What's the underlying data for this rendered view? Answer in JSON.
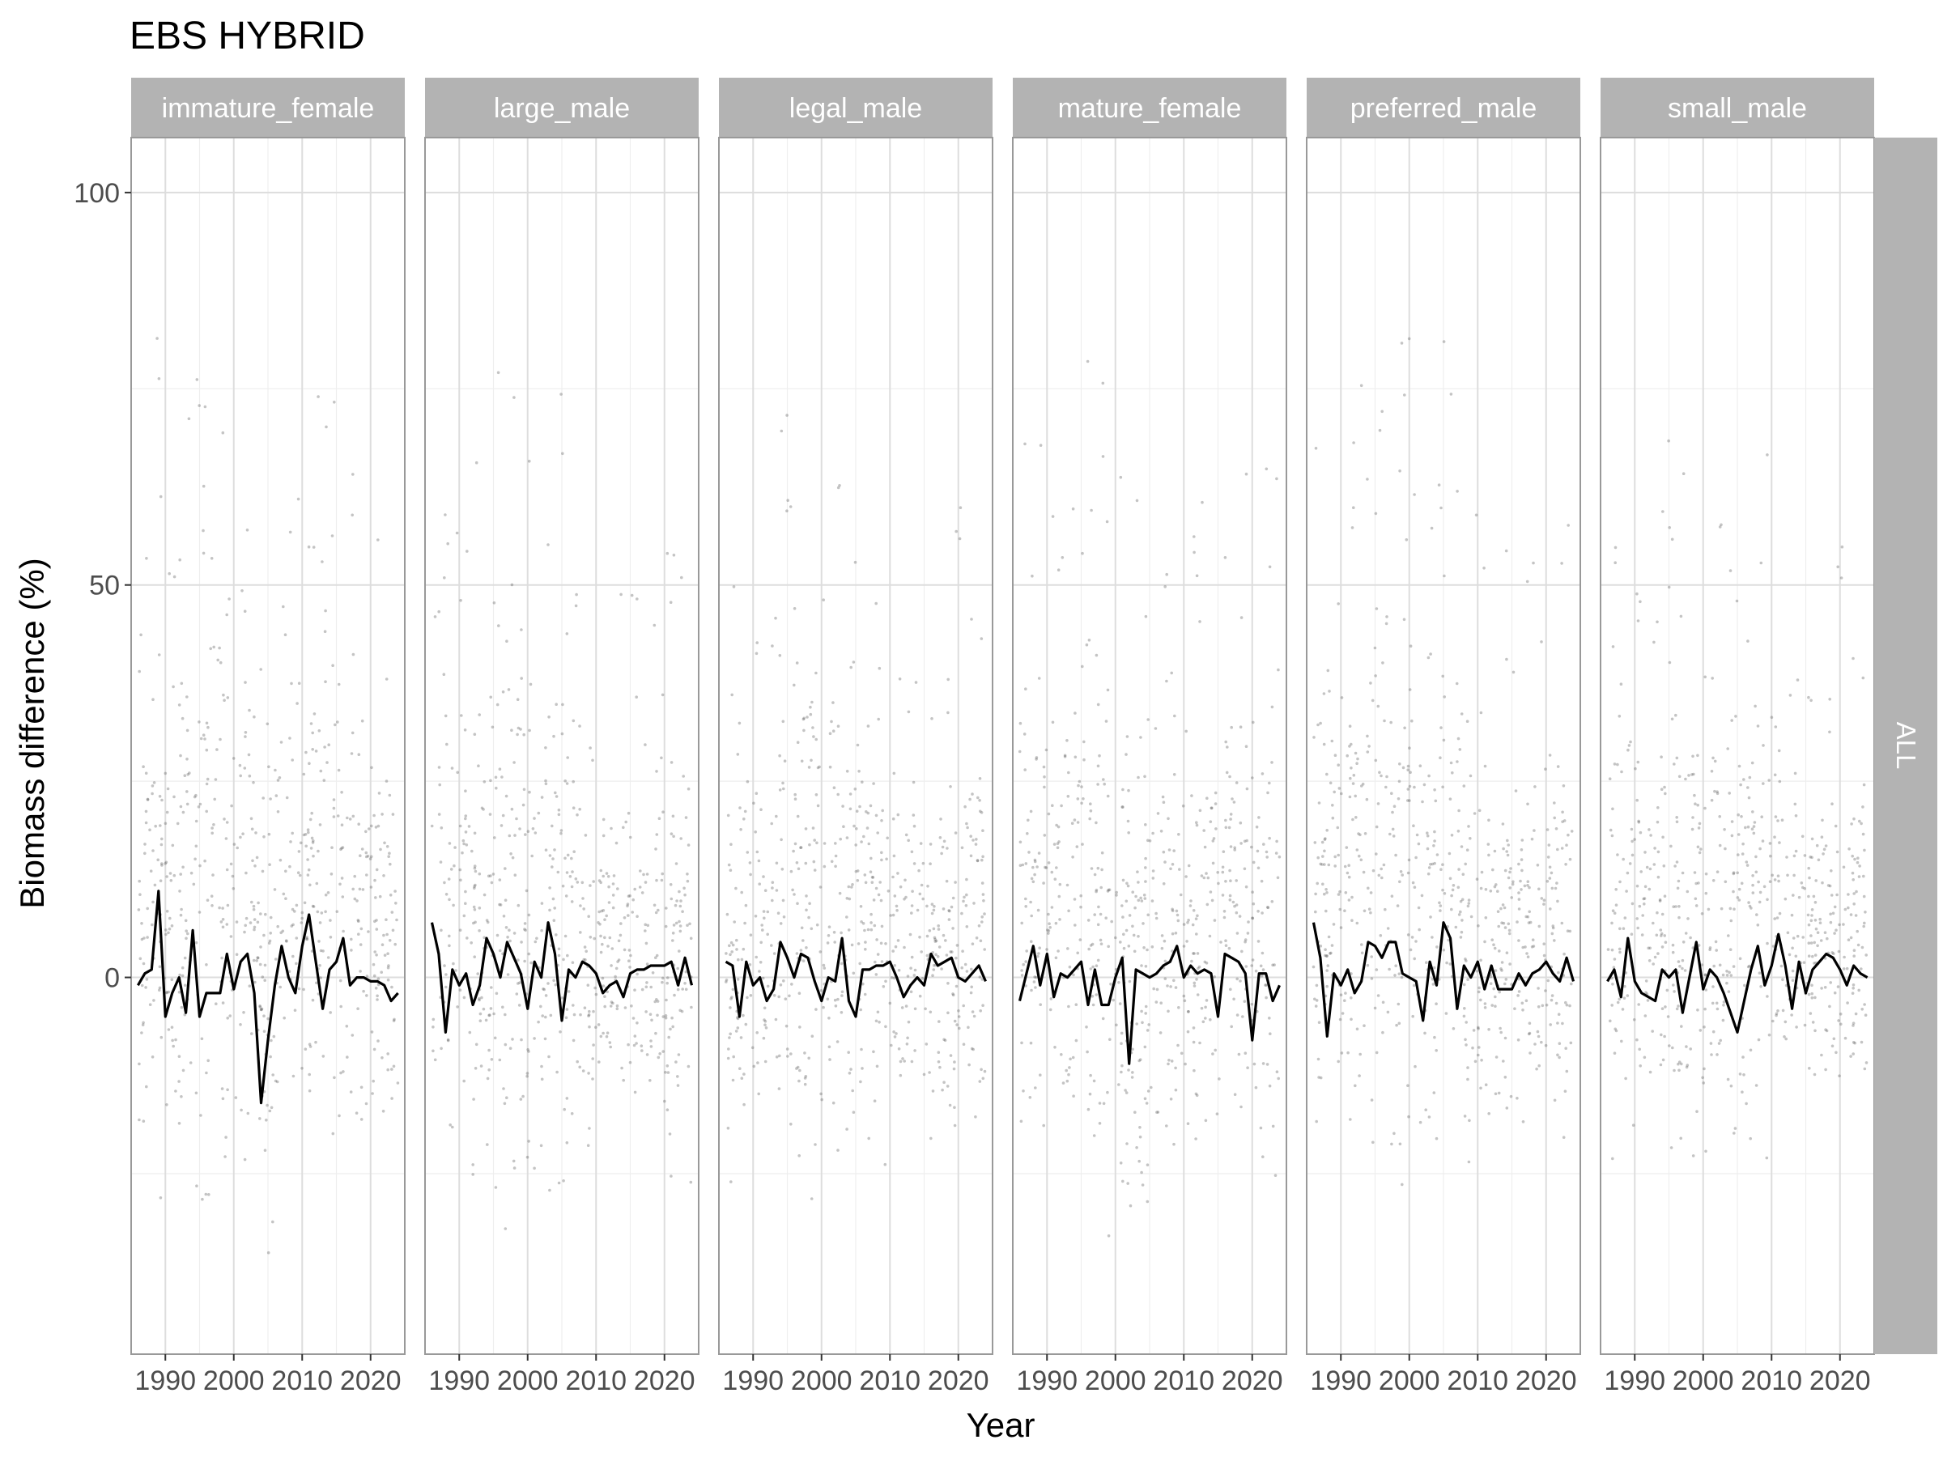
{
  "chart_data": {
    "type": "scatter",
    "title": "EBS HYBRID",
    "xlabel": "Year",
    "ylabel": "Biomass difference (%)",
    "xlim": [
      1985,
      2025
    ],
    "ylim": [
      -48,
      107
    ],
    "x_ticks": [
      1990,
      2000,
      2010,
      2020
    ],
    "y_ticks": [
      0,
      50,
      100
    ],
    "grid": true,
    "row_strip": "ALL",
    "colors": {
      "points": "#555555",
      "line": "#000000",
      "strip_bg": "#b3b3b3",
      "strip_text": "#ffffff",
      "grid_major": "#dddddd",
      "grid_minor": "#eeeeee",
      "panel_border": "#999999"
    },
    "panels": [
      {
        "label": "immature_female",
        "mean_line": {
          "x": [
            1986,
            1987,
            1988,
            1989,
            1990,
            1991,
            1992,
            1993,
            1994,
            1995,
            1996,
            1997,
            1998,
            1999,
            2000,
            2001,
            2002,
            2003,
            2004,
            2005,
            2006,
            2007,
            2008,
            2009,
            2010,
            2011,
            2012,
            2013,
            2014,
            2015,
            2016,
            2017,
            2018,
            2019,
            2020,
            2021,
            2022,
            2023,
            2024
          ],
          "y": [
            -1,
            0.5,
            1,
            11,
            -5,
            -2,
            0,
            -4.5,
            6,
            -5,
            -2,
            -2,
            -2,
            3,
            -1.5,
            2,
            3,
            -2,
            -16,
            -8,
            -1,
            4,
            0,
            -2,
            4,
            8,
            2,
            -4,
            1,
            2,
            5,
            -1,
            0,
            0,
            -0.5,
            -0.5,
            -1,
            -3,
            -2
          ]
        },
        "scatter_profile": [
          {
            "year": 1987,
            "low": -24,
            "high": 30
          },
          {
            "year": 1989,
            "low": -28,
            "high": 60
          },
          {
            "year": 1991,
            "low": -30,
            "high": 45
          },
          {
            "year": 1993,
            "low": -32,
            "high": 55
          },
          {
            "year": 1995,
            "low": -38,
            "high": 55
          },
          {
            "year": 1997,
            "low": -34,
            "high": 70
          },
          {
            "year": 2000,
            "low": -30,
            "high": 45
          },
          {
            "year": 2003,
            "low": -25,
            "high": 40
          },
          {
            "year": 2005,
            "low": -40,
            "high": 35
          },
          {
            "year": 2008,
            "low": -30,
            "high": 50
          },
          {
            "year": 2011,
            "low": -25,
            "high": 40
          },
          {
            "year": 2013,
            "low": -28,
            "high": 60
          },
          {
            "year": 2016,
            "low": -30,
            "high": 45
          },
          {
            "year": 2018,
            "low": -25,
            "high": 45
          },
          {
            "year": 2021,
            "low": -18,
            "high": 35
          },
          {
            "year": 2023,
            "low": -25,
            "high": 30
          }
        ]
      },
      {
        "label": "large_male",
        "mean_line": {
          "x": [
            1986,
            1987,
            1988,
            1989,
            1990,
            1991,
            1992,
            1993,
            1994,
            1995,
            1996,
            1997,
            1998,
            1999,
            2000,
            2001,
            2002,
            2003,
            2004,
            2005,
            2006,
            2007,
            2008,
            2009,
            2010,
            2011,
            2012,
            2013,
            2014,
            2015,
            2016,
            2017,
            2018,
            2019,
            2020,
            2021,
            2022,
            2023,
            2024
          ],
          "y": [
            7,
            3,
            -7,
            1,
            -1,
            0.5,
            -3.5,
            -1,
            5,
            3,
            0,
            4.5,
            2.5,
            0.5,
            -4,
            2,
            0,
            7,
            3,
            -5.5,
            1,
            0,
            2,
            1.5,
            0.5,
            -2,
            -1,
            -0.5,
            -2.5,
            0.5,
            1,
            1,
            1.5,
            1.5,
            1.5,
            2,
            -1,
            2.5,
            -1
          ]
        },
        "scatter_profile": [
          {
            "year": 1987,
            "low": -25,
            "high": 35
          },
          {
            "year": 1990,
            "low": -28,
            "high": 45
          },
          {
            "year": 1993,
            "low": -30,
            "high": 50
          },
          {
            "year": 1996,
            "low": -33,
            "high": 55
          },
          {
            "year": 1999,
            "low": -35,
            "high": 50
          },
          {
            "year": 2002,
            "low": -30,
            "high": 45
          },
          {
            "year": 2005,
            "low": -35,
            "high": 55
          },
          {
            "year": 2008,
            "low": -25,
            "high": 35
          },
          {
            "year": 2011,
            "low": -20,
            "high": 25
          },
          {
            "year": 2014,
            "low": -20,
            "high": 25
          },
          {
            "year": 2017,
            "low": -22,
            "high": 25
          },
          {
            "year": 2020,
            "low": -25,
            "high": 30
          },
          {
            "year": 2023,
            "low": -28,
            "high": 35
          }
        ]
      },
      {
        "label": "legal_male",
        "mean_line": {
          "x": [
            1986,
            1987,
            1988,
            1989,
            1990,
            1991,
            1992,
            1993,
            1994,
            1995,
            1996,
            1997,
            1998,
            1999,
            2000,
            2001,
            2002,
            2003,
            2004,
            2005,
            2006,
            2007,
            2008,
            2009,
            2010,
            2011,
            2012,
            2013,
            2014,
            2015,
            2016,
            2017,
            2018,
            2019,
            2020,
            2021,
            2022,
            2023,
            2024
          ],
          "y": [
            2,
            1.5,
            -5,
            2,
            -1,
            0,
            -3,
            -1.5,
            4.5,
            2.5,
            0,
            3,
            2.5,
            -0.5,
            -3,
            0,
            -0.5,
            5,
            -3,
            -5,
            1,
            1,
            1.5,
            1.5,
            2,
            0,
            -2.5,
            -1,
            0,
            -1,
            3,
            1.5,
            2,
            2.5,
            0,
            -0.5,
            0.5,
            1.5,
            -0.5
          ]
        },
        "scatter_profile": [
          {
            "year": 1987,
            "low": -25,
            "high": 30
          },
          {
            "year": 1990,
            "low": -28,
            "high": 40
          },
          {
            "year": 1993,
            "low": -30,
            "high": 45
          },
          {
            "year": 1996,
            "low": -30,
            "high": 50
          },
          {
            "year": 1999,
            "low": -32,
            "high": 55
          },
          {
            "year": 2002,
            "low": -30,
            "high": 50
          },
          {
            "year": 2005,
            "low": -28,
            "high": 55
          },
          {
            "year": 2008,
            "low": -25,
            "high": 35
          },
          {
            "year": 2011,
            "low": -22,
            "high": 30
          },
          {
            "year": 2014,
            "low": -22,
            "high": 30
          },
          {
            "year": 2017,
            "low": -22,
            "high": 30
          },
          {
            "year": 2020,
            "low": -25,
            "high": 35
          },
          {
            "year": 2023,
            "low": -28,
            "high": 40
          }
        ]
      },
      {
        "label": "mature_female",
        "mean_line": {
          "x": [
            1986,
            1987,
            1988,
            1989,
            1990,
            1991,
            1992,
            1993,
            1994,
            1995,
            1996,
            1997,
            1998,
            1999,
            2000,
            2001,
            2002,
            2003,
            2004,
            2005,
            2006,
            2007,
            2008,
            2009,
            2010,
            2011,
            2012,
            2013,
            2014,
            2015,
            2016,
            2017,
            2018,
            2019,
            2020,
            2021,
            2022,
            2023,
            2024
          ],
          "y": [
            -3,
            0.5,
            4,
            -1,
            3,
            -2.5,
            0.5,
            0,
            1,
            2,
            -3.5,
            1,
            -3.5,
            -3.5,
            0,
            2.5,
            -11,
            1,
            0.5,
            0,
            0.5,
            1.5,
            2,
            4,
            0,
            1.5,
            0.5,
            1,
            0.5,
            -5,
            3,
            2.5,
            2,
            0.5,
            -8,
            0.5,
            0.5,
            -3,
            -1
          ]
        },
        "scatter_profile": [
          {
            "year": 1987,
            "low": -28,
            "high": 45
          },
          {
            "year": 1990,
            "low": -30,
            "high": 50
          },
          {
            "year": 1993,
            "low": -32,
            "high": 45
          },
          {
            "year": 1996,
            "low": -32,
            "high": 55
          },
          {
            "year": 1999,
            "low": -30,
            "high": 50
          },
          {
            "year": 2002,
            "low": -35,
            "high": 45
          },
          {
            "year": 2005,
            "low": -38,
            "high": 40
          },
          {
            "year": 2008,
            "low": -28,
            "high": 35
          },
          {
            "year": 2011,
            "low": -25,
            "high": 35
          },
          {
            "year": 2014,
            "low": -25,
            "high": 40
          },
          {
            "year": 2017,
            "low": -25,
            "high": 40
          },
          {
            "year": 2020,
            "low": -28,
            "high": 45
          },
          {
            "year": 2023,
            "low": -30,
            "high": 45
          }
        ]
      },
      {
        "label": "preferred_male",
        "mean_line": {
          "x": [
            1986,
            1987,
            1988,
            1989,
            1990,
            1991,
            1992,
            1993,
            1994,
            1995,
            1996,
            1997,
            1998,
            1999,
            2000,
            2001,
            2002,
            2003,
            2004,
            2005,
            2006,
            2007,
            2008,
            2009,
            2010,
            2011,
            2012,
            2013,
            2014,
            2015,
            2016,
            2017,
            2018,
            2019,
            2020,
            2021,
            2022,
            2023,
            2024
          ],
          "y": [
            7,
            2.5,
            -7.5,
            0.5,
            -1,
            1,
            -2,
            -0.5,
            4.5,
            4,
            2.5,
            4.5,
            4.5,
            0.5,
            0,
            -0.5,
            -5.5,
            2,
            -1,
            7,
            5,
            -4,
            1.5,
            0,
            2,
            -1.5,
            1.5,
            -1.5,
            -1.5,
            -1.5,
            0.5,
            -1,
            0.5,
            1,
            2,
            0.5,
            -0.5,
            2.5,
            -0.5
          ]
        },
        "scatter_profile": [
          {
            "year": 1987,
            "low": -25,
            "high": 45
          },
          {
            "year": 1990,
            "low": -28,
            "high": 50
          },
          {
            "year": 1993,
            "low": -30,
            "high": 55
          },
          {
            "year": 1996,
            "low": -30,
            "high": 55
          },
          {
            "year": 1999,
            "low": -32,
            "high": 60
          },
          {
            "year": 2002,
            "low": -30,
            "high": 50
          },
          {
            "year": 2005,
            "low": -32,
            "high": 60
          },
          {
            "year": 2008,
            "low": -25,
            "high": 40
          },
          {
            "year": 2011,
            "low": -22,
            "high": 30
          },
          {
            "year": 2014,
            "low": -22,
            "high": 30
          },
          {
            "year": 2017,
            "low": -22,
            "high": 30
          },
          {
            "year": 2020,
            "low": -25,
            "high": 35
          },
          {
            "year": 2023,
            "low": -28,
            "high": 40
          }
        ]
      },
      {
        "label": "small_male",
        "mean_line": {
          "x": [
            1986,
            1987,
            1988,
            1989,
            1990,
            1991,
            1992,
            1993,
            1994,
            1995,
            1996,
            1997,
            1998,
            1999,
            2000,
            2001,
            2002,
            2003,
            2004,
            2005,
            2006,
            2007,
            2008,
            2009,
            2010,
            2011,
            2012,
            2013,
            2014,
            2015,
            2016,
            2017,
            2018,
            2019,
            2020,
            2021,
            2022,
            2023,
            2024
          ],
          "y": [
            -0.5,
            1,
            -2.5,
            5,
            -0.5,
            -2,
            -2.5,
            -3,
            1,
            0,
            1,
            -4.5,
            0,
            4.5,
            -1.5,
            1,
            0,
            -2,
            -4.5,
            -7,
            -3,
            1,
            4,
            -1,
            1.5,
            5.5,
            1.5,
            -4,
            2,
            -2,
            1,
            2,
            3,
            2.5,
            1,
            -1,
            1.5,
            0.5,
            0
          ]
        },
        "scatter_profile": [
          {
            "year": 1987,
            "low": -22,
            "high": 35
          },
          {
            "year": 1990,
            "low": -25,
            "high": 45
          },
          {
            "year": 1993,
            "low": -25,
            "high": 45
          },
          {
            "year": 1996,
            "low": -28,
            "high": 45
          },
          {
            "year": 1999,
            "low": -25,
            "high": 40
          },
          {
            "year": 2002,
            "low": -28,
            "high": 45
          },
          {
            "year": 2005,
            "low": -30,
            "high": 50
          },
          {
            "year": 2008,
            "low": -25,
            "high": 50
          },
          {
            "year": 2011,
            "low": -20,
            "high": 35
          },
          {
            "year": 2014,
            "low": -18,
            "high": 30
          },
          {
            "year": 2017,
            "low": -20,
            "high": 30
          },
          {
            "year": 2020,
            "low": -22,
            "high": 30
          },
          {
            "year": 2023,
            "low": -25,
            "high": 35
          }
        ]
      }
    ]
  }
}
